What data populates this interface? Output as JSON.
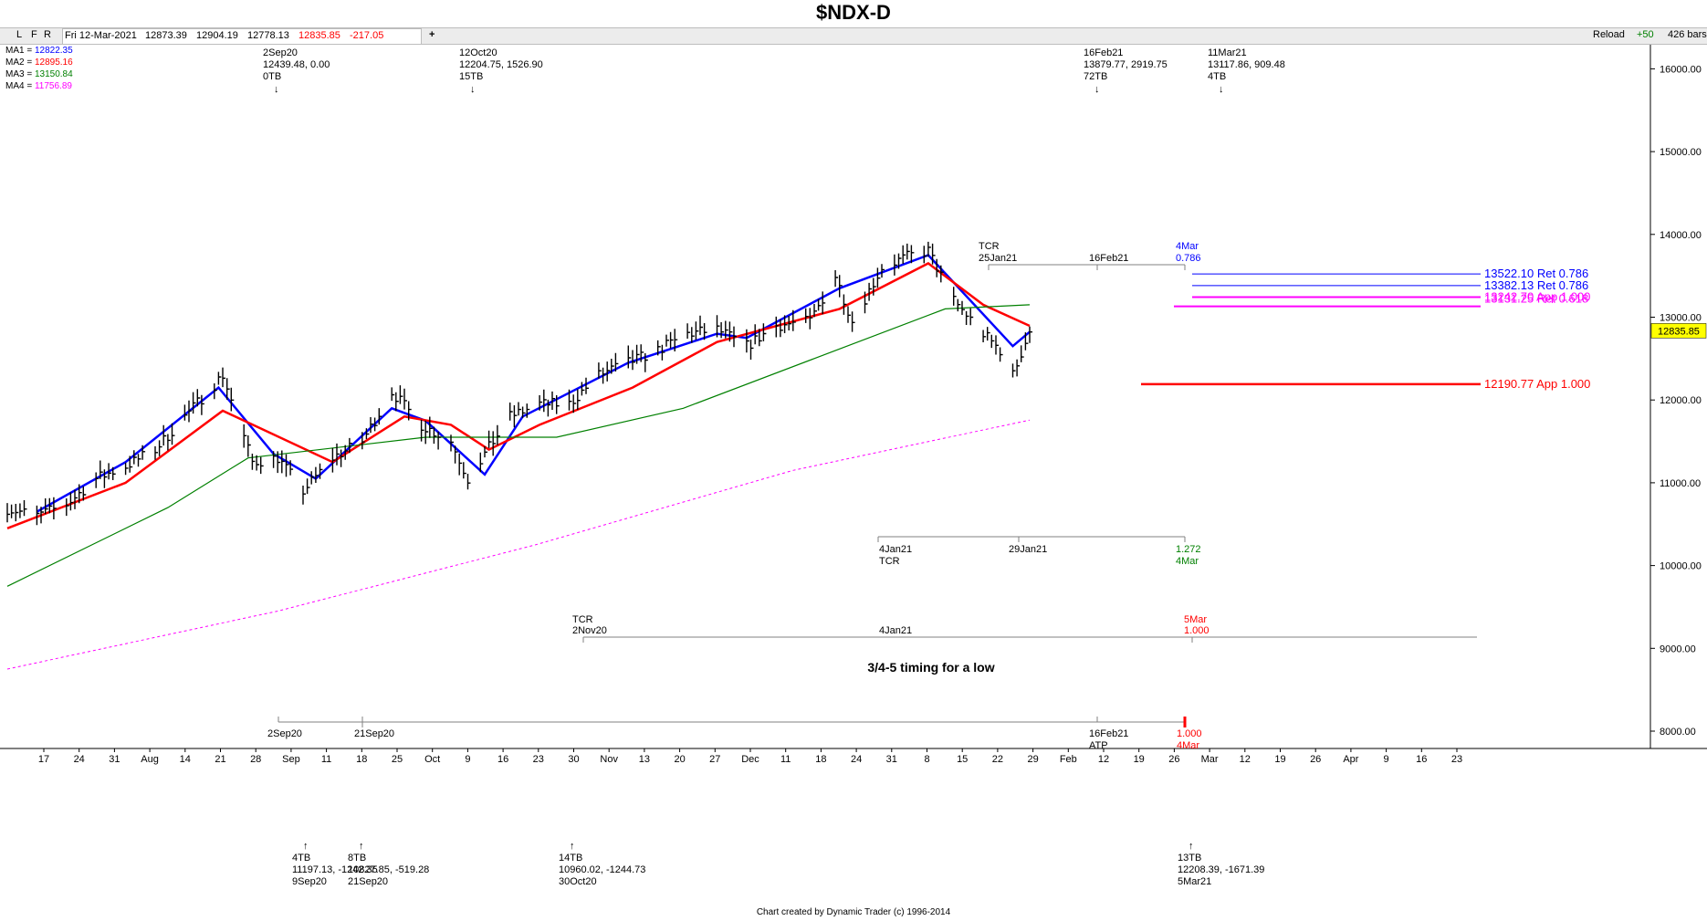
{
  "title": "$NDX-D",
  "toolbar": {
    "buttons": [
      "L",
      "F",
      "R"
    ],
    "date": "Fri 12-Mar-2021",
    "open": "12873.39",
    "high": "12904.19",
    "low": "12778.13",
    "close": "12835.85",
    "change": "-217.05",
    "add": "+",
    "reload": "Reload",
    "plus": "+50",
    "bars": "426 bars"
  },
  "ma_legend": [
    {
      "label": "MA1 = ",
      "value": "12822.35",
      "color": "#0000ff"
    },
    {
      "label": "MA2 = ",
      "value": "12895.16",
      "color": "#ff0000"
    },
    {
      "label": "MA3 = ",
      "value": "13150.84",
      "color": "#008000"
    },
    {
      "label": "MA4 = ",
      "value": "11756.89",
      "color": "#ff00ff"
    }
  ],
  "price_box": "12835.85",
  "footer": "Chart created by Dynamic Trader  (c)  1996-2014",
  "pivots_top": [
    {
      "lines": [
        "2Sep20",
        "12439.48, 0.00",
        "0TB"
      ],
      "arrow": "↓"
    },
    {
      "lines": [
        "12Oct20",
        "12204.75, 1526.90",
        "15TB"
      ],
      "arrow": "↓"
    },
    {
      "lines": [
        "16Feb21",
        "13879.77, 2919.75",
        "72TB"
      ],
      "arrow": "↓"
    },
    {
      "lines": [
        "11Mar21",
        "13117.86, 909.48",
        "4TB"
      ],
      "arrow": "↓"
    }
  ],
  "pivots_bottom": [
    {
      "arrow": "↑",
      "lines": [
        "4TB",
        "11197.13, -1242.35",
        "9Sep20"
      ]
    },
    {
      "arrow": "↑",
      "lines": [
        "8TB",
        "10827.85, -519.28",
        "21Sep20"
      ]
    },
    {
      "arrow": "↑",
      "lines": [
        "14TB",
        "10960.02, -1244.73",
        "30Oct20"
      ]
    },
    {
      "arrow": "↑",
      "lines": [
        "13TB",
        "12208.39, -1671.39",
        "5Mar21"
      ]
    }
  ],
  "annotations": {
    "time1": {
      "tcr": "TCR",
      "d1": "25Jan21",
      "d2": "16Feb21",
      "d3": "4Mar",
      "r": "0.786"
    },
    "time2": {
      "d1": "4Jan21",
      "tcr": "TCR",
      "d2": "29Jan21",
      "r": "1.272",
      "d3": "4Mar"
    },
    "time3": {
      "tcr": "TCR",
      "d1": "2Nov20",
      "d2": "4Jan21",
      "d3": "5Mar",
      "r": "1.000"
    },
    "note": "3/4-5 timing for a low",
    "time4": {
      "d1": "2Sep20",
      "d2": "21Sep20",
      "d3": "16Feb21",
      "atp": "ATP",
      "r": "1.000",
      "d4": "4Mar"
    }
  },
  "level_labels": [
    {
      "text": "13522.10 Ret 0.786",
      "color": "#0000ff"
    },
    {
      "text": "13382.13 Ret 0.786",
      "color": "#0000ff"
    },
    {
      "text": "13242.70 App 1.000",
      "color": "#ff00ff"
    },
    {
      "text": "13131.25 Ret 0.618",
      "color": "#ff00ff"
    },
    {
      "text": "12190.77 App 1.000",
      "color": "#ff0000"
    }
  ],
  "chart_data": {
    "type": "line",
    "title": "$NDX-D",
    "y_ticks": [
      "16000.00",
      "15000.00",
      "14000.00",
      "13000.00",
      "12000.00",
      "11000.00",
      "10000.00",
      "9000.00",
      "8000.00"
    ],
    "ylim": [
      7800,
      16400
    ],
    "x_labels": [
      "17",
      "24",
      "31",
      "Aug",
      "14",
      "21",
      "28",
      "Sep",
      "11",
      "18",
      "25",
      "Oct",
      "9",
      "16",
      "23",
      "30",
      "Nov",
      "13",
      "20",
      "27",
      "Dec",
      "11",
      "18",
      "24",
      "31",
      "8",
      "15",
      "22",
      "29",
      "Feb",
      "12",
      "19",
      "26",
      "Mar",
      "12",
      "19",
      "26",
      "Apr",
      "9",
      "16",
      "23"
    ],
    "levels": [
      {
        "value": 13522.1,
        "label": "13522.10 Ret 0.786",
        "color": "#0000ff"
      },
      {
        "value": 13382.13,
        "label": "13382.13 Ret 0.786",
        "color": "#0000ff"
      },
      {
        "value": 13242.7,
        "label": "13242.70 App 1.000",
        "color": "#ff00ff"
      },
      {
        "value": 13131.25,
        "label": "13131.25 Ret 0.618",
        "color": "#ff00ff"
      },
      {
        "value": 12190.77,
        "label": "12190.77 App 1.000",
        "color": "#ff0000"
      }
    ],
    "close_keypoints": [
      [
        "2020-07-13",
        10690
      ],
      [
        "2020-07-20",
        10600
      ],
      [
        "2020-07-27",
        10740
      ],
      [
        "2020-08-03",
        11050
      ],
      [
        "2020-08-10",
        11200
      ],
      [
        "2020-08-17",
        11400
      ],
      [
        "2020-08-24",
        11800
      ],
      [
        "2020-09-02",
        12300
      ],
      [
        "2020-09-09",
        11250
      ],
      [
        "2020-09-15",
        11300
      ],
      [
        "2020-09-21",
        10900
      ],
      [
        "2020-09-28",
        11300
      ],
      [
        "2020-10-05",
        11500
      ],
      [
        "2020-10-12",
        12100
      ],
      [
        "2020-10-19",
        11700
      ],
      [
        "2020-10-26",
        11500
      ],
      [
        "2020-10-30",
        11050
      ],
      [
        "2020-11-09",
        11800
      ],
      [
        "2020-11-16",
        11950
      ],
      [
        "2020-11-23",
        11950
      ],
      [
        "2020-11-30",
        12300
      ],
      [
        "2020-12-07",
        12450
      ],
      [
        "2020-12-14",
        12600
      ],
      [
        "2020-12-21",
        12800
      ],
      [
        "2020-12-28",
        12850
      ],
      [
        "2021-01-04",
        12650
      ],
      [
        "2021-01-11",
        12900
      ],
      [
        "2021-01-19",
        12950
      ],
      [
        "2021-01-25",
        13500
      ],
      [
        "2021-01-29",
        12950
      ],
      [
        "2021-02-05",
        13600
      ],
      [
        "2021-02-12",
        13750
      ],
      [
        "2021-02-16",
        13800
      ],
      [
        "2021-02-22",
        13200
      ],
      [
        "2021-03-01",
        12800
      ],
      [
        "2021-03-05",
        12600
      ],
      [
        "2021-03-08",
        12300
      ],
      [
        "2021-03-12",
        12835
      ]
    ],
    "series": [
      {
        "name": "MA1",
        "color": "#0000ff",
        "points": [
          [
            "2020-07-20",
            10650
          ],
          [
            "2020-08-10",
            11250
          ],
          [
            "2020-09-01",
            12150
          ],
          [
            "2020-09-14",
            11350
          ],
          [
            "2020-09-24",
            11050
          ],
          [
            "2020-10-12",
            11900
          ],
          [
            "2020-10-20",
            11750
          ],
          [
            "2020-11-03",
            11100
          ],
          [
            "2020-11-12",
            11800
          ],
          [
            "2020-12-07",
            12450
          ],
          [
            "2020-12-28",
            12800
          ],
          [
            "2021-01-04",
            12750
          ],
          [
            "2021-01-26",
            13350
          ],
          [
            "2021-02-16",
            13750
          ],
          [
            "2021-03-08",
            12650
          ],
          [
            "2021-03-12",
            12822
          ]
        ]
      },
      {
        "name": "MA2",
        "color": "#ff0000",
        "points": [
          [
            "2020-07-13",
            10450
          ],
          [
            "2020-08-10",
            11000
          ],
          [
            "2020-09-02",
            11870
          ],
          [
            "2020-09-28",
            11250
          ],
          [
            "2020-10-15",
            11800
          ],
          [
            "2020-10-26",
            11700
          ],
          [
            "2020-11-04",
            11400
          ],
          [
            "2020-11-16",
            11700
          ],
          [
            "2020-12-08",
            12150
          ],
          [
            "2020-12-28",
            12700
          ],
          [
            "2021-01-26",
            13100
          ],
          [
            "2021-02-16",
            13650
          ],
          [
            "2021-03-01",
            13150
          ],
          [
            "2021-03-12",
            12895
          ]
        ]
      },
      {
        "name": "MA3",
        "color": "#008000",
        "points": [
          [
            "2020-07-13",
            9750
          ],
          [
            "2020-08-20",
            10700
          ],
          [
            "2020-09-08",
            11300
          ],
          [
            "2020-10-20",
            11550
          ],
          [
            "2020-11-20",
            11550
          ],
          [
            "2020-12-20",
            11900
          ],
          [
            "2021-01-20",
            12500
          ],
          [
            "2021-02-20",
            13100
          ],
          [
            "2021-03-12",
            13150
          ]
        ]
      },
      {
        "name": "MA4",
        "color": "#ff00ff",
        "points": [
          [
            "2020-07-13",
            8750
          ],
          [
            "2020-09-15",
            9450
          ],
          [
            "2020-11-15",
            10250
          ],
          [
            "2021-01-15",
            11150
          ],
          [
            "2021-03-12",
            11757
          ]
        ]
      }
    ]
  }
}
